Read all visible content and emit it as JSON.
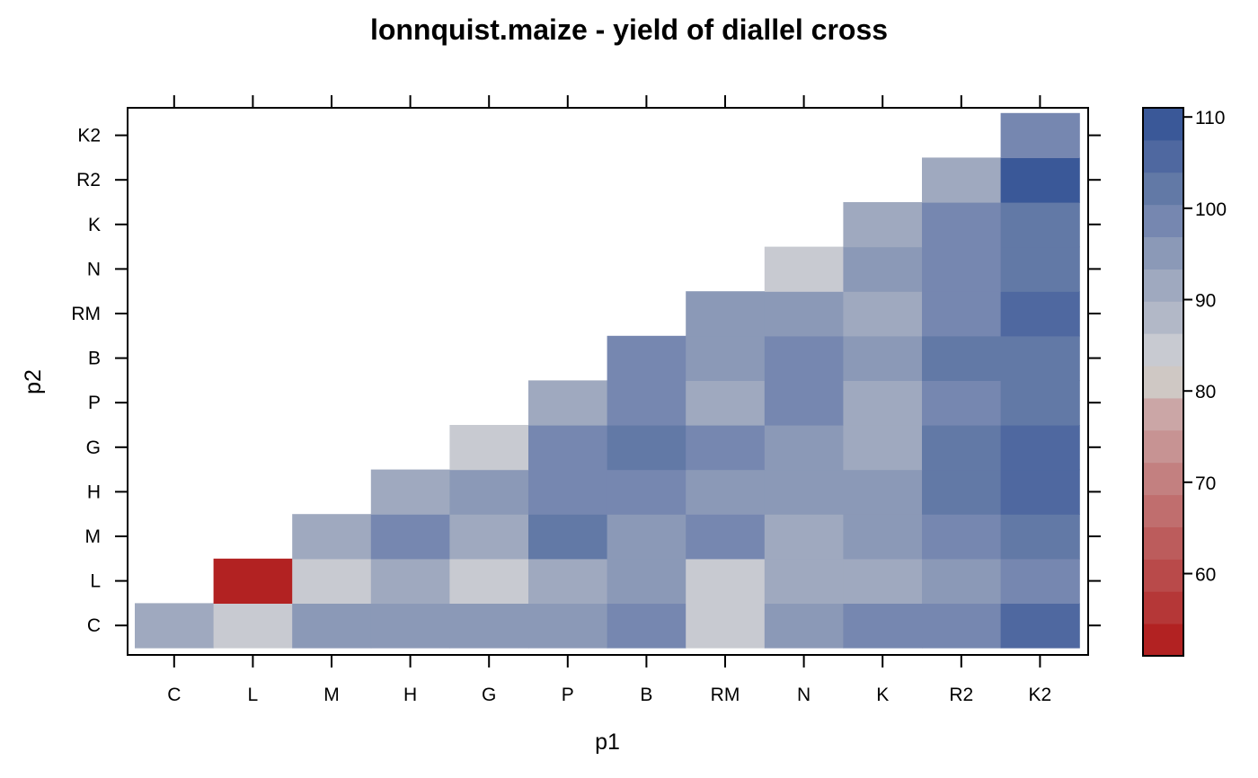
{
  "chart_data": {
    "type": "heatmap",
    "title": "lonnquist.maize - yield of diallel cross",
    "xlabel": "p1",
    "ylabel": "p2",
    "x_categories": [
      "C",
      "L",
      "M",
      "H",
      "G",
      "P",
      "B",
      "RM",
      "N",
      "K",
      "R2",
      "K2"
    ],
    "y_categories": [
      "C",
      "L",
      "M",
      "H",
      "G",
      "P",
      "B",
      "RM",
      "N",
      "K",
      "R2",
      "K2"
    ],
    "values": [
      [
        90,
        86,
        94,
        94,
        94,
        94,
        98,
        86,
        94,
        98,
        98,
        106
      ],
      [
        null,
        53,
        86,
        90,
        86,
        90,
        94,
        84,
        90,
        90,
        94,
        98
      ],
      [
        null,
        null,
        90,
        98,
        90,
        102,
        94,
        98,
        90,
        94,
        98,
        102
      ],
      [
        null,
        null,
        null,
        90,
        94,
        98,
        98,
        94,
        94,
        94,
        102,
        106
      ],
      [
        null,
        null,
        null,
        null,
        86,
        98,
        102,
        98,
        94,
        90,
        102,
        106
      ],
      [
        null,
        null,
        null,
        null,
        null,
        90,
        98,
        90,
        98,
        90,
        98,
        102
      ],
      [
        null,
        null,
        null,
        null,
        null,
        null,
        98,
        94,
        98,
        94,
        102,
        102
      ],
      [
        null,
        null,
        null,
        null,
        null,
        null,
        null,
        94,
        94,
        90,
        98,
        106
      ],
      [
        null,
        null,
        null,
        null,
        null,
        null,
        null,
        null,
        86,
        94,
        98,
        102
      ],
      [
        null,
        null,
        null,
        null,
        null,
        null,
        null,
        null,
        null,
        90,
        98,
        102
      ],
      [
        null,
        null,
        null,
        null,
        null,
        null,
        null,
        null,
        null,
        null,
        90,
        110
      ],
      [
        null,
        null,
        null,
        null,
        null,
        null,
        null,
        null,
        null,
        null,
        null,
        98
      ]
    ],
    "colorbar": {
      "min": 51,
      "max": 111,
      "ticks": [
        "60",
        "70",
        "80",
        "90",
        "100",
        "110"
      ],
      "colors": [
        "#b22222",
        "#b53737",
        "#b94a4a",
        "#bc5c5c",
        "#c06e6e",
        "#c38080",
        "#c79393",
        "#cba6a6",
        "#cfc8c4",
        "#c8cad1",
        "#b2b8c7",
        "#9fa9bf",
        "#8b99b7",
        "#7687b0",
        "#6279a6",
        "#4f68a0",
        "#3a5898"
      ]
    },
    "grid": false,
    "legend": "right"
  }
}
